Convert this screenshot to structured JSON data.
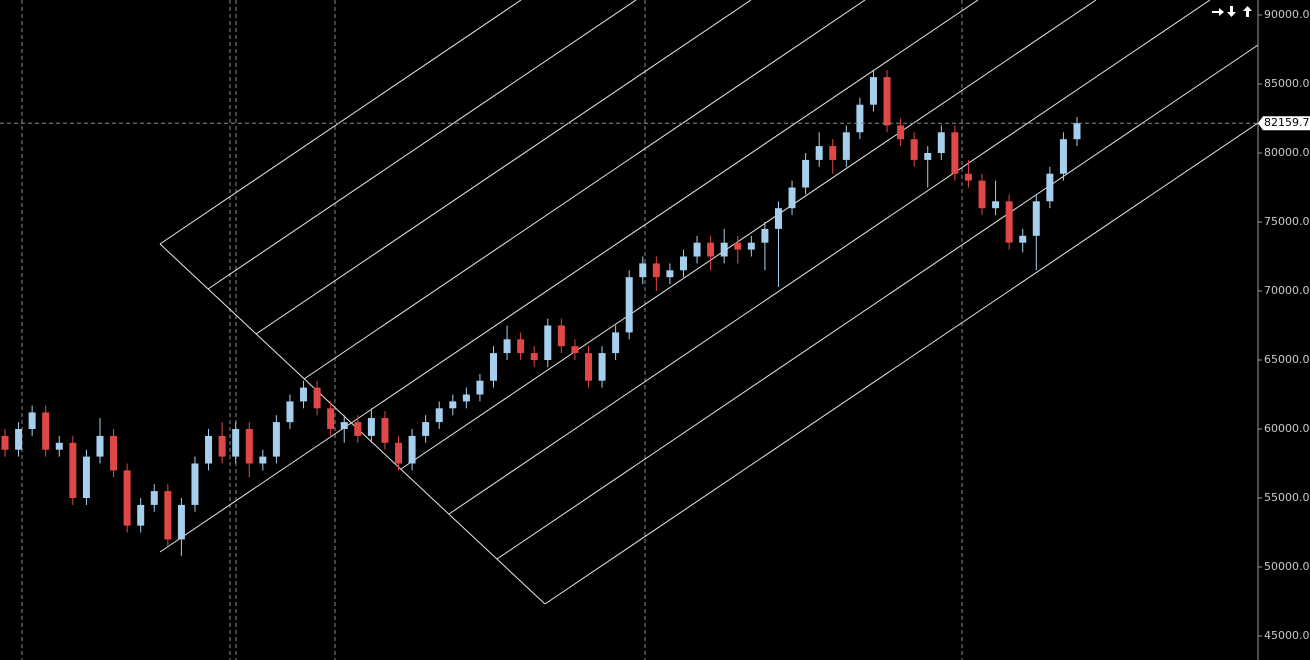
{
  "chart_data": {
    "type": "candlestick",
    "up_color": "#a6cfee",
    "down_color": "#e04848",
    "open": [
      59500,
      58500,
      60000,
      61200,
      58500,
      59000,
      55000,
      58000,
      59500,
      57000,
      53000,
      54500,
      55500,
      52000,
      54500,
      57500,
      59500,
      58000,
      60000,
      57500,
      58000,
      60500,
      62000,
      63000,
      61500,
      60000,
      60500,
      59500,
      60800,
      59000,
      57500,
      59500,
      60500,
      61500,
      62000,
      62500,
      63500,
      65500,
      66500,
      65500,
      65000,
      67500,
      66000,
      65500,
      63500,
      65500,
      67000,
      71000,
      72000,
      71000,
      71500,
      72500,
      73500,
      72500,
      73500,
      73000,
      73500,
      74500,
      76000,
      77500,
      79500,
      80500,
      79500,
      81500,
      83500,
      85500,
      82000,
      81000,
      79500,
      80000,
      81500,
      78500,
      78000,
      76000,
      76500,
      73500,
      74000,
      76500,
      78500,
      81000
    ],
    "high": [
      60000,
      60500,
      61700,
      61700,
      59500,
      59500,
      58500,
      60800,
      60000,
      57500,
      55000,
      56000,
      56000,
      55000,
      58000,
      60000,
      60500,
      60500,
      60500,
      58500,
      61000,
      62500,
      63500,
      63500,
      62000,
      61000,
      61000,
      61500,
      61300,
      59500,
      60000,
      61000,
      62000,
      62500,
      63000,
      64000,
      66000,
      67500,
      67000,
      66000,
      68000,
      68000,
      66500,
      66000,
      66000,
      67500,
      71500,
      72500,
      72500,
      72000,
      73000,
      74000,
      74000,
      74500,
      74000,
      74000,
      75000,
      76500,
      78000,
      80000,
      81500,
      81000,
      82000,
      84000,
      86000,
      86000,
      82500,
      81500,
      80500,
      82000,
      82000,
      79500,
      78500,
      78000,
      77000,
      74500,
      77000,
      79000,
      81500,
      82600
    ],
    "low": [
      58000,
      58000,
      59500,
      58000,
      58000,
      54500,
      54500,
      57500,
      56500,
      52500,
      52500,
      54000,
      51500,
      50800,
      54000,
      57000,
      57500,
      57500,
      56500,
      57000,
      57500,
      60000,
      61500,
      61000,
      59500,
      59000,
      59000,
      59000,
      58500,
      57000,
      57000,
      59000,
      60000,
      61000,
      61500,
      62000,
      63000,
      65000,
      65000,
      64500,
      64500,
      65500,
      65000,
      63000,
      63000,
      65000,
      66500,
      70500,
      70000,
      70500,
      71000,
      72000,
      71500,
      72000,
      72000,
      72500,
      71500,
      70300,
      75500,
      77000,
      79000,
      78500,
      79000,
      81000,
      83000,
      81500,
      80500,
      79000,
      77500,
      79500,
      78000,
      77500,
      75500,
      75500,
      73000,
      72800,
      71500,
      76000,
      78000,
      80500
    ],
    "close": [
      58500,
      60000,
      61200,
      58500,
      59000,
      55000,
      58000,
      59500,
      57000,
      53000,
      54500,
      55500,
      52000,
      54500,
      57500,
      59500,
      58000,
      60000,
      57500,
      58000,
      60500,
      62000,
      63000,
      61500,
      60000,
      60500,
      59500,
      60800,
      59000,
      57500,
      59500,
      60500,
      61500,
      62000,
      62500,
      63500,
      65500,
      66500,
      65500,
      65000,
      67500,
      66000,
      65500,
      63500,
      65500,
      67000,
      71000,
      72000,
      71000,
      71500,
      72500,
      73500,
      72500,
      73500,
      73000,
      73500,
      74500,
      76000,
      77500,
      79500,
      80500,
      79500,
      81500,
      83500,
      85500,
      82000,
      81000,
      79500,
      80000,
      81500,
      78500,
      78000,
      76000,
      76500,
      73500,
      74000,
      76500,
      78500,
      81000,
      82159.7
    ],
    "last_price": 82159.7,
    "ylim": [
      43261,
      91087
    ],
    "yticks": [
      {
        "value": 45000,
        "label": "45000.0"
      },
      {
        "value": 50000,
        "label": "50000.0"
      },
      {
        "value": 55000,
        "label": "55000.0"
      },
      {
        "value": 60000,
        "label": "60000.0"
      },
      {
        "value": 65000,
        "label": "65000.0"
      },
      {
        "value": 70000,
        "label": "70000.0"
      },
      {
        "value": 75000,
        "label": "75000.0"
      },
      {
        "value": 80000,
        "label": "80000.0"
      },
      {
        "value": 85000,
        "label": "85000.0"
      },
      {
        "value": 90000,
        "label": "90000.0"
      }
    ]
  }
}
